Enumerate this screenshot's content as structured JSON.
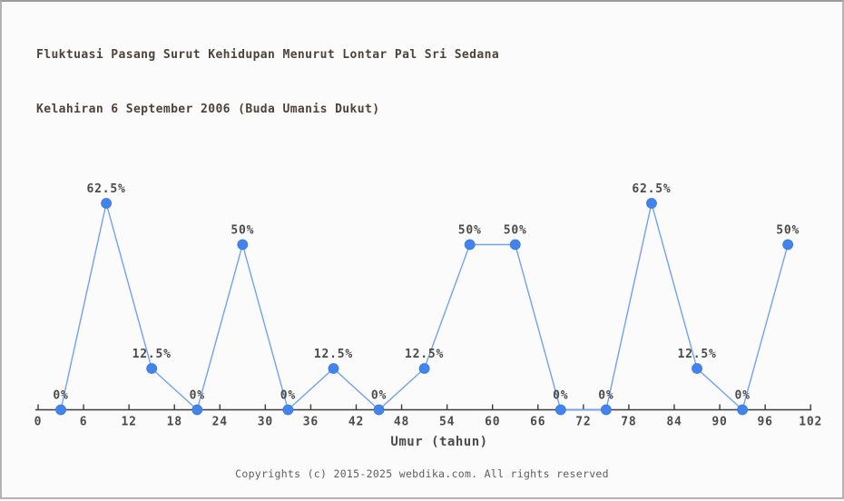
{
  "title": {
    "line1": "Fluktuasi Pasang Surut Kehidupan Menurut Lontar Pal Sri Sedana",
    "line2": "Kelahiran 6 September 2006 (Buda Umanis Dukut)"
  },
  "chart_data": {
    "type": "line",
    "title": "Fluktuasi Pasang Surut Kehidupan Menurut Lontar Pal Sri Sedana Kelahiran 6 September 2006 (Buda Umanis Dukut)",
    "xlabel": "Umur (tahun)",
    "ylabel": "",
    "x": [
      3,
      9,
      15,
      21,
      27,
      33,
      39,
      45,
      51,
      57,
      63,
      69,
      75,
      81,
      87,
      93,
      99
    ],
    "values": [
      0,
      62.5,
      12.5,
      0,
      50,
      0,
      12.5,
      0,
      12.5,
      50,
      50,
      0,
      0,
      62.5,
      12.5,
      0,
      50
    ],
    "point_labels": [
      "0%",
      "62.5%",
      "12.5%",
      "0%",
      "50%",
      "0%",
      "12.5%",
      "0%",
      "12.5%",
      "50%",
      "50%",
      "0%",
      "0%",
      "62.5%",
      "12.5%",
      "0%",
      "50%"
    ],
    "x_ticks": [
      0,
      6,
      12,
      18,
      24,
      30,
      36,
      42,
      48,
      54,
      60,
      66,
      72,
      78,
      84,
      90,
      96,
      102
    ],
    "xlim": [
      0,
      102
    ],
    "ylim": [
      0,
      100
    ],
    "grid": false,
    "legend": false,
    "y_axis_visible": false,
    "colors": {
      "line": "#72a1ef",
      "marker": "#4384ec",
      "marker_edge": "#3a78d8",
      "axis": "#3c3c3c",
      "label": "#4a4a4a",
      "title": "#4e423b"
    }
  },
  "footer": {
    "copyright": "Copyrights (c) 2015-2025 webdika.com. All rights reserved"
  }
}
